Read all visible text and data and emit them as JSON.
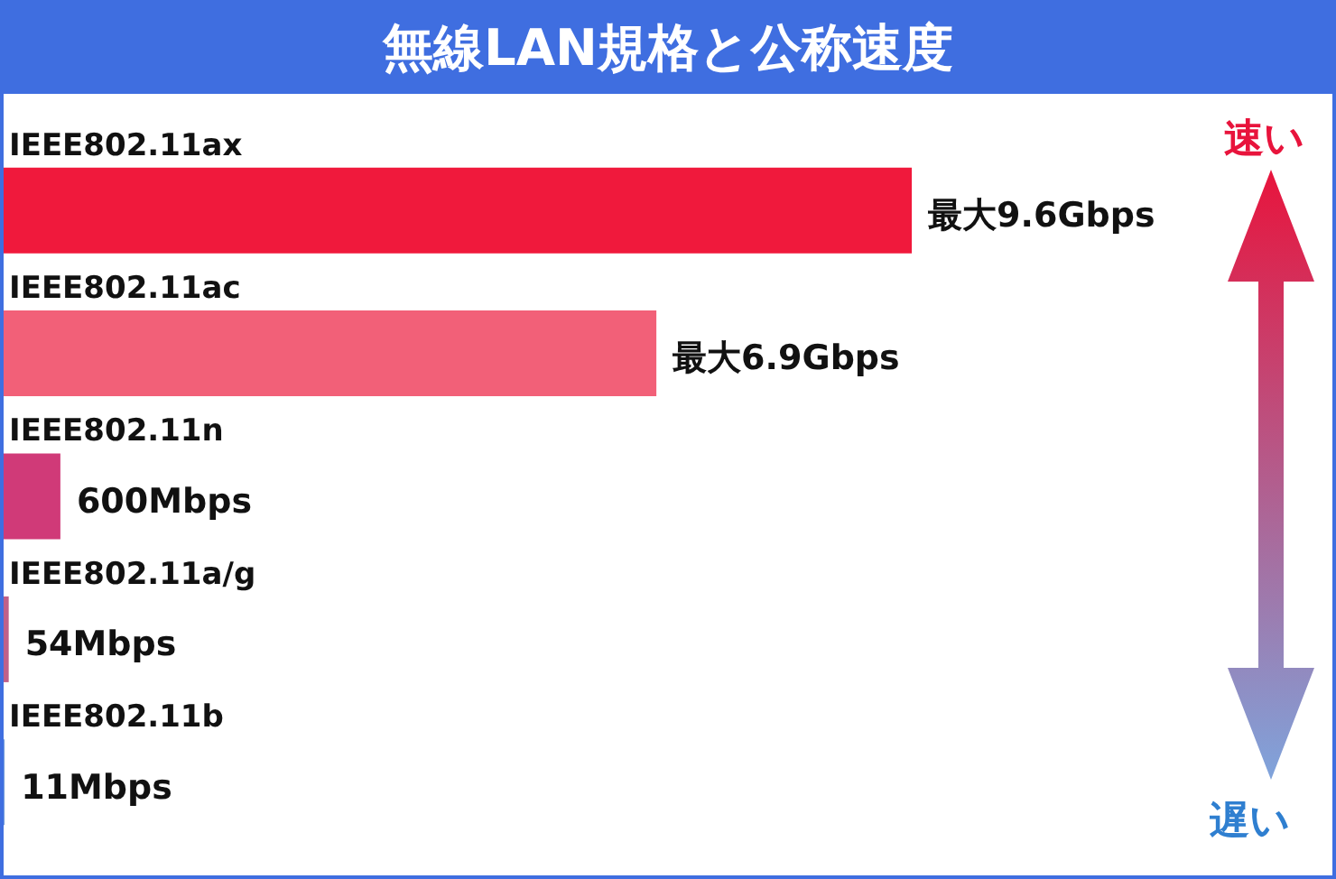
{
  "chart_data": {
    "type": "bar",
    "orientation": "horizontal",
    "tick_labels": false,
    "title": "無線LAN規格と公称速度",
    "categories": [
      "IEEE802.11ax",
      "IEEE802.11ac",
      "IEEE802.11n",
      "IEEE802.11a/g",
      "IEEE802.11b"
    ],
    "values": [
      9600,
      6900,
      600,
      54,
      11
    ],
    "colors": [
      "#f0193c",
      "#f26078",
      "#d03a78",
      "#c06088",
      "#7aa0dc"
    ],
    "value_labels": [
      "最大9.6Gbps",
      "最大6.9Gbps",
      "600Mbps",
      "54Mbps",
      "11Mbps"
    ],
    "annotations": [
      "速い",
      "遅い"
    ],
    "legend": false
  }
}
